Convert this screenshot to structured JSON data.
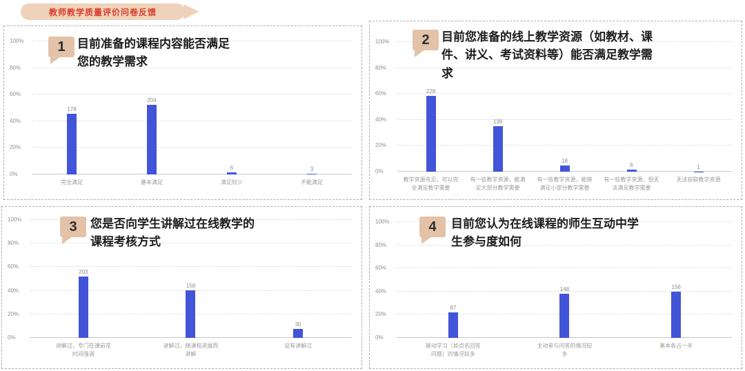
{
  "header": {
    "banner_label": "教师教学质量评价问卷反馈"
  },
  "colors": {
    "bar": "#4254d8",
    "banner_bg": "#eed3ba",
    "banner_text": "#dc3b2c",
    "badge_bg": "#e3c2a8",
    "grid": "#d6d6d6",
    "axis_text": "#8f8f8f"
  },
  "axis": {
    "y_ticks": [
      "100%",
      "80%",
      "60%",
      "40%",
      "20%",
      "0%"
    ],
    "ylim": [
      0,
      100
    ],
    "grid": "dotted"
  },
  "chart_data": [
    {
      "type": "bar",
      "badge": "1",
      "title": "目前准备的课程内容能否满足您的教学需求",
      "categories": [
        "完全满足",
        "基本满足",
        "满足较少",
        "不能满足"
      ],
      "values": [
        178,
        204,
        6,
        3
      ]
    },
    {
      "type": "bar",
      "badge": "2",
      "title": "目前您准备的线上教学资源（如教材、课件、讲义、考试资料等）能否满足教学需求",
      "categories": [
        "教学资源充足，可以完全满足教学需要",
        "有一些教学资源，能满足大部分教学需要",
        "有一些教学资源，能够满足小部分教学需要",
        "有一些教学资源，但无法满足教学需要",
        "无法获取教学资源"
      ],
      "values": [
        228,
        138,
        18,
        6,
        1
      ]
    },
    {
      "type": "bar",
      "badge": "3",
      "title": "您是否向学生讲解过在线教学的课程考核方式",
      "categories": [
        "讲解过，专门在课前花时间强调",
        "讲解过，随课程进展而讲解",
        "没有讲解过"
      ],
      "values": [
        203,
        158,
        30
      ]
    },
    {
      "type": "bar",
      "badge": "4",
      "title": "目前您认为在线课程的师生互动中学生参与度如何",
      "categories": [
        "被动学习（如点名回答问题）的情况较多",
        "主动参与问答的情况较多",
        "基本各占一半"
      ],
      "values": [
        87,
        148,
        156
      ]
    }
  ]
}
